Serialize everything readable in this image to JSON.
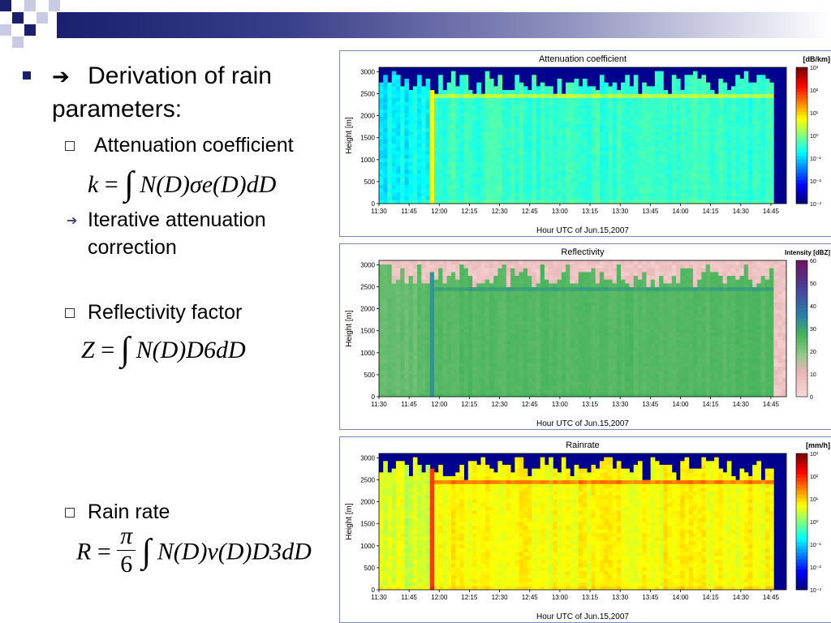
{
  "colors": {
    "header_bar": "#1a1f6e",
    "bullet": "#1a1f6e",
    "panel_border": "#7a8ab8"
  },
  "slide": {
    "main_bullet_arrow": "➔",
    "main_bullet_line1": "Derivation of rain",
    "main_bullet_line2": "parameters:",
    "items": [
      {
        "label": "Attenuation coefficient",
        "formula_lhs": "k",
        "formula_rhs": "N(D)σe(D)dD"
      },
      {
        "label_line1": "Iterative attenuation",
        "label_line2": "correction"
      },
      {
        "label": "Reflectivity factor",
        "formula_lhs": "Z",
        "formula_rhs": "N(D)D6dD"
      },
      {
        "label": "Rain rate",
        "formula_lhs": "R",
        "formula_frac_num": "π",
        "formula_frac_den": "6",
        "formula_rhs": "N(D)v(D)D3dD"
      }
    ],
    "formula_eq": "=",
    "formula_integral": "∫"
  },
  "chart_data": [
    {
      "type": "heatmap",
      "title": "Attenuation coefficient",
      "xlabel": "Hour UTC of Jun.15,2007",
      "ylabel": "Height [m]",
      "colorbar_label": "[dB/km]",
      "x_ticks": [
        "11:30",
        "11:45",
        "12:00",
        "12:15",
        "12:30",
        "12:45",
        "13:00",
        "13:15",
        "13:30",
        "13:45",
        "14:00",
        "14:15",
        "14:30",
        "14:45"
      ],
      "y_ticks": [
        0,
        500,
        1000,
        1500,
        2000,
        2500,
        3000
      ],
      "ylim": [
        0,
        3100
      ],
      "colorbar_ticks": [
        "10³",
        "10²",
        "10¹",
        "10⁰",
        "10⁻¹",
        "10⁻²",
        "10⁻³"
      ],
      "colorbar_scale": "log",
      "colormap": "jet"
    },
    {
      "type": "heatmap",
      "title": "Reflectivity",
      "xlabel": "Hour UTC of Jun.15,2007",
      "ylabel": "Height [m]",
      "colorbar_label": "Intensity [dBZ]",
      "x_ticks": [
        "11:30",
        "11:45",
        "12:00",
        "12:15",
        "12:30",
        "12:45",
        "13:00",
        "13:15",
        "13:30",
        "13:45",
        "14:00",
        "14:15",
        "14:30",
        "14:45"
      ],
      "y_ticks": [
        0,
        500,
        1000,
        1500,
        2000,
        2500,
        3000
      ],
      "ylim": [
        0,
        3100
      ],
      "colorbar_ticks": [
        "60",
        "50",
        "40",
        "30",
        "20",
        "10",
        "0"
      ],
      "colorbar_scale": "linear",
      "colormap": "pink-green-purple"
    },
    {
      "type": "heatmap",
      "title": "Rainrate",
      "xlabel": "Hour UTC of Jun.15,2007",
      "ylabel": "Height [m]",
      "colorbar_label": "[mm/h]",
      "x_ticks": [
        "11:30",
        "11:45",
        "12:00",
        "12:15",
        "12:30",
        "12:45",
        "13:00",
        "13:15",
        "13:30",
        "13:45",
        "14:00",
        "14:15",
        "14:30",
        "14:45"
      ],
      "y_ticks": [
        0,
        500,
        1000,
        1500,
        2000,
        2500,
        3000
      ],
      "ylim": [
        0,
        3100
      ],
      "colorbar_ticks": [
        "10³",
        "10²",
        "10¹",
        "10⁰",
        "10⁻¹",
        "10⁻²",
        "10⁻³"
      ],
      "colorbar_scale": "log",
      "colormap": "jet"
    }
  ]
}
